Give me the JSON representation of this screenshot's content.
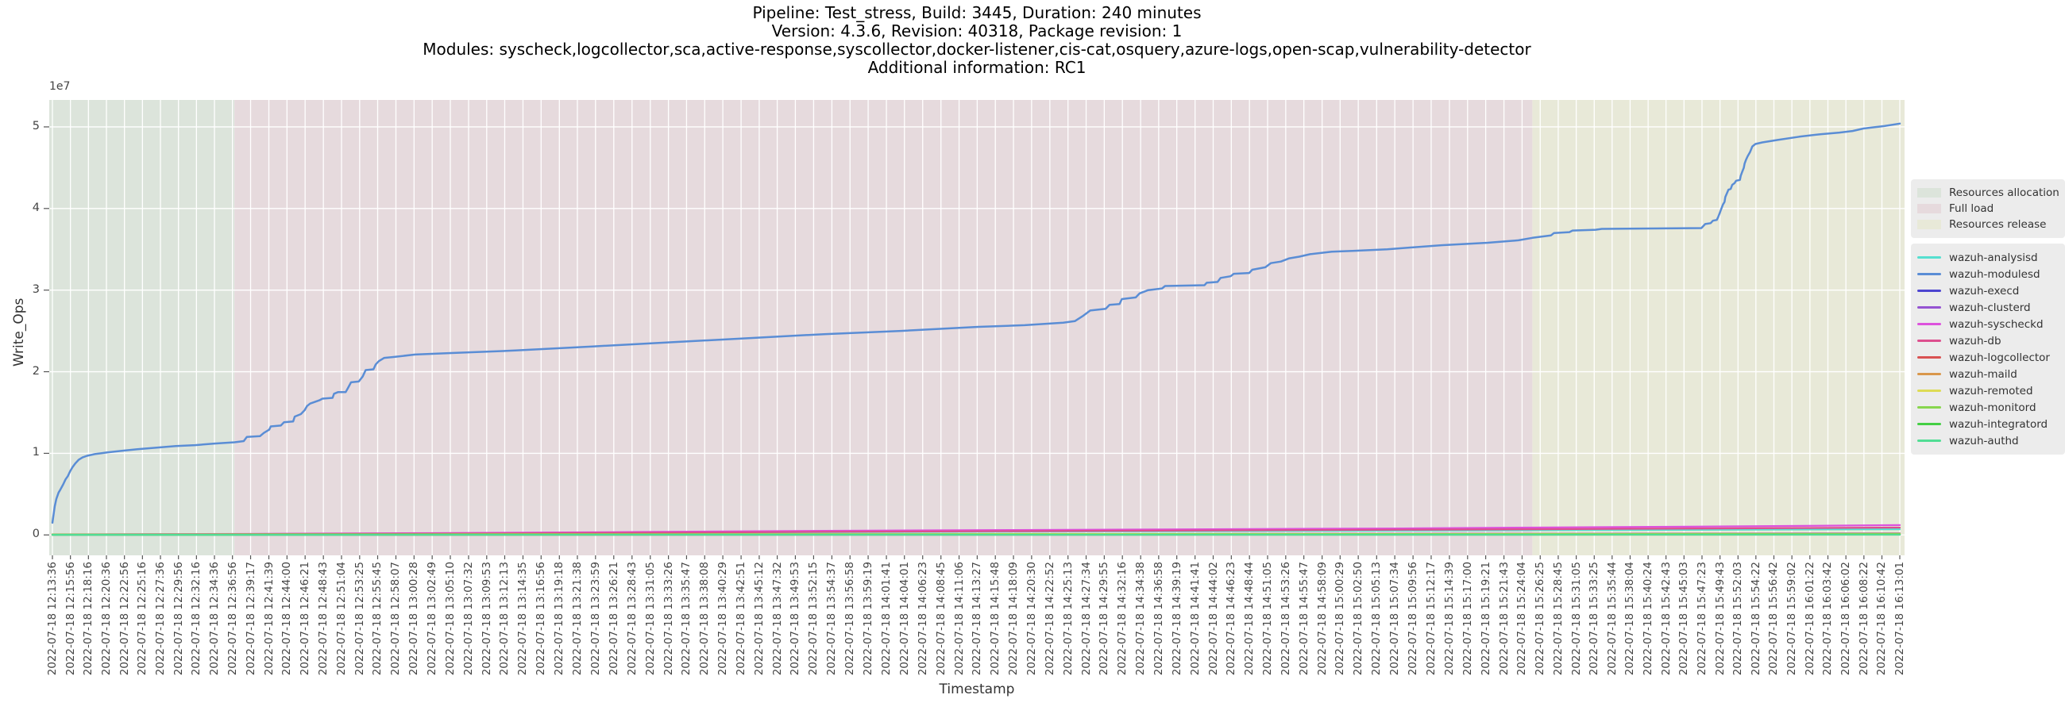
{
  "title": {
    "lines": [
      "Pipeline: Test_stress, Build: 3445, Duration: 240 minutes",
      "Version: 4.3.6, Revision: 40318, Package revision: 1",
      "Modules: syscheck,logcollector,sca,active-response,syscollector,docker-listener,cis-cat,osquery,azure-logs,open-scap,vulnerability-detector",
      "Additional information: RC1"
    ]
  },
  "axes": {
    "ylabel": "Write_Ops",
    "xlabel": "Timestamp",
    "y_offset_label": "1e7"
  },
  "chart_data": {
    "type": "line",
    "title": "Pipeline: Test_stress, Build: 3445, Duration: 240 minutes",
    "xlabel": "Timestamp",
    "ylabel": "Write_Ops",
    "grid": true,
    "legend_position": "right",
    "ylim": [
      -2500000,
      53300000
    ],
    "y_ticks": [
      {
        "label": "0",
        "value": 0
      },
      {
        "label": "1",
        "value": 10000000
      },
      {
        "label": "2",
        "value": 20000000
      },
      {
        "label": "3",
        "value": 30000000
      },
      {
        "label": "4",
        "value": 40000000
      },
      {
        "label": "5",
        "value": 50000000
      }
    ],
    "x_tick_labels": [
      "2022-07-18 12:13:36",
      "2022-07-18 12:15:56",
      "2022-07-18 12:18:16",
      "2022-07-18 12:20:36",
      "2022-07-18 12:22:56",
      "2022-07-18 12:25:16",
      "2022-07-18 12:27:36",
      "2022-07-18 12:29:56",
      "2022-07-18 12:32:16",
      "2022-07-18 12:34:36",
      "2022-07-18 12:36:56",
      "2022-07-18 12:39:17",
      "2022-07-18 12:41:39",
      "2022-07-18 12:44:00",
      "2022-07-18 12:46:21",
      "2022-07-18 12:48:43",
      "2022-07-18 12:51:04",
      "2022-07-18 12:53:25",
      "2022-07-18 12:55:45",
      "2022-07-18 12:58:07",
      "2022-07-18 13:00:28",
      "2022-07-18 13:02:49",
      "2022-07-18 13:05:10",
      "2022-07-18 13:07:32",
      "2022-07-18 13:09:53",
      "2022-07-18 13:12:13",
      "2022-07-18 13:14:35",
      "2022-07-18 13:16:56",
      "2022-07-18 13:19:18",
      "2022-07-18 13:21:38",
      "2022-07-18 13:23:59",
      "2022-07-18 13:26:21",
      "2022-07-18 13:28:43",
      "2022-07-18 13:31:05",
      "2022-07-18 13:33:26",
      "2022-07-18 13:35:47",
      "2022-07-18 13:38:08",
      "2022-07-18 13:40:29",
      "2022-07-18 13:42:51",
      "2022-07-18 13:45:12",
      "2022-07-18 13:47:32",
      "2022-07-18 13:49:53",
      "2022-07-18 13:52:15",
      "2022-07-18 13:54:37",
      "2022-07-18 13:56:58",
      "2022-07-18 13:59:19",
      "2022-07-18 14:01:41",
      "2022-07-18 14:04:01",
      "2022-07-18 14:06:23",
      "2022-07-18 14:08:45",
      "2022-07-18 14:11:06",
      "2022-07-18 14:13:27",
      "2022-07-18 14:15:48",
      "2022-07-18 14:18:09",
      "2022-07-18 14:20:30",
      "2022-07-18 14:22:52",
      "2022-07-18 14:25:13",
      "2022-07-18 14:27:34",
      "2022-07-18 14:29:55",
      "2022-07-18 14:32:16",
      "2022-07-18 14:34:38",
      "2022-07-18 14:36:58",
      "2022-07-18 14:39:19",
      "2022-07-18 14:41:41",
      "2022-07-18 14:44:02",
      "2022-07-18 14:46:23",
      "2022-07-18 14:48:44",
      "2022-07-18 14:51:05",
      "2022-07-18 14:53:26",
      "2022-07-18 14:55:47",
      "2022-07-18 14:58:09",
      "2022-07-18 15:00:29",
      "2022-07-18 15:02:50",
      "2022-07-18 15:05:13",
      "2022-07-18 15:07:34",
      "2022-07-18 15:09:56",
      "2022-07-18 15:12:17",
      "2022-07-18 15:14:39",
      "2022-07-18 15:17:00",
      "2022-07-18 15:19:21",
      "2022-07-18 15:21:43",
      "2022-07-18 15:24:04",
      "2022-07-18 15:26:25",
      "2022-07-18 15:28:45",
      "2022-07-18 15:31:05",
      "2022-07-18 15:33:25",
      "2022-07-18 15:35:44",
      "2022-07-18 15:38:04",
      "2022-07-18 15:40:24",
      "2022-07-18 15:42:43",
      "2022-07-18 15:45:03",
      "2022-07-18 15:47:23",
      "2022-07-18 15:49:43",
      "2022-07-18 15:52:03",
      "2022-07-18 15:54:22",
      "2022-07-18 15:56:42",
      "2022-07-18 15:59:02",
      "2022-07-18 16:01:22",
      "2022-07-18 16:03:42",
      "2022-07-18 16:06:02",
      "2022-07-18 16:08:22",
      "2022-07-18 16:10:42",
      "2022-07-18 16:13:01"
    ],
    "regions": [
      {
        "label": "Resources allocation",
        "color": "#dce4db",
        "t_start_min": -0.45,
        "t_end_min": 23.6
      },
      {
        "label": "Full load",
        "color": "#e6dadd",
        "t_start_min": 23.6,
        "t_end_min": 191.8
      },
      {
        "label": "Resources release",
        "color": "#e8e9d8",
        "t_start_min": 191.8,
        "t_end_min": 240.3
      }
    ],
    "series": [
      {
        "name": "wazuh-analysisd",
        "color": "#55dfd0",
        "points": [
          [
            0,
            50000
          ],
          [
            30,
            120000
          ],
          [
            60,
            220000
          ],
          [
            100,
            350000
          ],
          [
            140,
            450000
          ],
          [
            180,
            550000
          ],
          [
            200,
            600000
          ],
          [
            220,
            650000
          ],
          [
            239.42,
            700000
          ]
        ]
      },
      {
        "name": "wazuh-modulesd",
        "color": "#5a8dd5",
        "points": [
          [
            0,
            1500000
          ],
          [
            0.3,
            3500000
          ],
          [
            0.5,
            4400000
          ],
          [
            0.8,
            5200000
          ],
          [
            1,
            5500000
          ],
          [
            1.4,
            6200000
          ],
          [
            1.7,
            6800000
          ],
          [
            2,
            7200000
          ],
          [
            2.3,
            7800000
          ],
          [
            2.6,
            8300000
          ],
          [
            3,
            8800000
          ],
          [
            3.4,
            9200000
          ],
          [
            3.9,
            9500000
          ],
          [
            4.5,
            9700000
          ],
          [
            5.5,
            9900000
          ],
          [
            7,
            10100000
          ],
          [
            9,
            10300000
          ],
          [
            11,
            10500000
          ],
          [
            13.5,
            10700000
          ],
          [
            16,
            10900000
          ],
          [
            18.5,
            11000000
          ],
          [
            21,
            11200000
          ],
          [
            23.6,
            11350000
          ],
          [
            24.8,
            11500000
          ],
          [
            25.2,
            12000000
          ],
          [
            26.9,
            12100000
          ],
          [
            27.4,
            12500000
          ],
          [
            28.1,
            12900000
          ],
          [
            28.3,
            13300000
          ],
          [
            29.6,
            13400000
          ],
          [
            30,
            13800000
          ],
          [
            31.2,
            13900000
          ],
          [
            31.4,
            14500000
          ],
          [
            32.2,
            14800000
          ],
          [
            32.7,
            15300000
          ],
          [
            33,
            15800000
          ],
          [
            33.4,
            16100000
          ],
          [
            34.6,
            16500000
          ],
          [
            35,
            16700000
          ],
          [
            36.3,
            16800000
          ],
          [
            36.5,
            17300000
          ],
          [
            37,
            17500000
          ],
          [
            38,
            17500000
          ],
          [
            38.3,
            18000000
          ],
          [
            38.7,
            18700000
          ],
          [
            39.7,
            18800000
          ],
          [
            40.2,
            19400000
          ],
          [
            40.6,
            20200000
          ],
          [
            41.6,
            20300000
          ],
          [
            41.9,
            20900000
          ],
          [
            42.3,
            21300000
          ],
          [
            43,
            21700000
          ],
          [
            44.2,
            21800000
          ],
          [
            47,
            22100000
          ],
          [
            52,
            22300000
          ],
          [
            60,
            22600000
          ],
          [
            70,
            23100000
          ],
          [
            80,
            23600000
          ],
          [
            90,
            24100000
          ],
          [
            100,
            24600000
          ],
          [
            110,
            25000000
          ],
          [
            120,
            25500000
          ],
          [
            126,
            25700000
          ],
          [
            131,
            26000000
          ],
          [
            132.5,
            26200000
          ],
          [
            133.5,
            26800000
          ],
          [
            134.5,
            27500000
          ],
          [
            136.5,
            27700000
          ],
          [
            137,
            28200000
          ],
          [
            138.3,
            28300000
          ],
          [
            138.6,
            28900000
          ],
          [
            140.4,
            29100000
          ],
          [
            140.9,
            29600000
          ],
          [
            142,
            30000000
          ],
          [
            143.8,
            30200000
          ],
          [
            144.2,
            30500000
          ],
          [
            149.3,
            30600000
          ],
          [
            149.6,
            30900000
          ],
          [
            151,
            31000000
          ],
          [
            151.4,
            31500000
          ],
          [
            152.7,
            31700000
          ],
          [
            153.1,
            32000000
          ],
          [
            155.1,
            32100000
          ],
          [
            155.5,
            32500000
          ],
          [
            157.2,
            32800000
          ],
          [
            157.9,
            33300000
          ],
          [
            159.2,
            33500000
          ],
          [
            160.3,
            33900000
          ],
          [
            161.6,
            34100000
          ],
          [
            163,
            34400000
          ],
          [
            165.8,
            34700000
          ],
          [
            168.5,
            34800000
          ],
          [
            173,
            35000000
          ],
          [
            180,
            35500000
          ],
          [
            186,
            35800000
          ],
          [
            190,
            36100000
          ],
          [
            191.8,
            36400000
          ],
          [
            194.2,
            36700000
          ],
          [
            194.6,
            37000000
          ],
          [
            196.6,
            37100000
          ],
          [
            197,
            37300000
          ],
          [
            200,
            37400000
          ],
          [
            200.8,
            37500000
          ],
          [
            213.7,
            37600000
          ],
          [
            214.2,
            38100000
          ],
          [
            214.9,
            38200000
          ],
          [
            215.2,
            38500000
          ],
          [
            215.7,
            38600000
          ],
          [
            215.9,
            39000000
          ],
          [
            216.1,
            39500000
          ],
          [
            216.3,
            40000000
          ],
          [
            216.5,
            40500000
          ],
          [
            216.7,
            40800000
          ],
          [
            216.8,
            41400000
          ],
          [
            217.2,
            42300000
          ],
          [
            217.5,
            42400000
          ],
          [
            217.7,
            42900000
          ],
          [
            218,
            43100000
          ],
          [
            218.2,
            43400000
          ],
          [
            218.7,
            43500000
          ],
          [
            218.8,
            44000000
          ],
          [
            219,
            44500000
          ],
          [
            219.2,
            45000000
          ],
          [
            219.3,
            45500000
          ],
          [
            219.5,
            46000000
          ],
          [
            219.7,
            46400000
          ],
          [
            220,
            46900000
          ],
          [
            220.3,
            47600000
          ],
          [
            220.7,
            47900000
          ],
          [
            221.6,
            48100000
          ],
          [
            223.6,
            48400000
          ],
          [
            226.4,
            48800000
          ],
          [
            229.1,
            49100000
          ],
          [
            231.6,
            49300000
          ],
          [
            233.3,
            49500000
          ],
          [
            234.7,
            49800000
          ],
          [
            237.4,
            50100000
          ],
          [
            239.42,
            50400000
          ]
        ]
      },
      {
        "name": "wazuh-execd",
        "color": "#4d45d0",
        "points": [
          [
            0,
            20000
          ],
          [
            239.42,
            50000
          ]
        ]
      },
      {
        "name": "wazuh-clusterd",
        "color": "#9553d2",
        "points": [
          [
            0,
            30000
          ],
          [
            120,
            100000
          ],
          [
            239.42,
            200000
          ]
        ]
      },
      {
        "name": "wazuh-syscheckd",
        "color": "#dd52dd",
        "points": [
          [
            0,
            80000
          ],
          [
            25,
            120000
          ],
          [
            50,
            220000
          ],
          [
            75,
            350000
          ],
          [
            100,
            500000
          ],
          [
            125,
            600000
          ],
          [
            150,
            700000
          ],
          [
            175,
            800000
          ],
          [
            192,
            900000
          ],
          [
            210,
            1000000
          ],
          [
            225,
            1100000
          ],
          [
            239.42,
            1200000
          ]
        ]
      },
      {
        "name": "wazuh-db",
        "color": "#dd4f8e",
        "points": [
          [
            0,
            50000
          ],
          [
            50,
            150000
          ],
          [
            100,
            380000
          ],
          [
            150,
            550000
          ],
          [
            192,
            700000
          ],
          [
            239.42,
            900000
          ]
        ]
      },
      {
        "name": "wazuh-logcollector",
        "color": "#d95252",
        "points": [
          [
            0,
            40000
          ],
          [
            239.42,
            80000
          ]
        ]
      },
      {
        "name": "wazuh-maild",
        "color": "#d9974b",
        "points": [
          [
            0,
            20000
          ],
          [
            239.42,
            40000
          ]
        ]
      },
      {
        "name": "wazuh-remoted",
        "color": "#dedb55",
        "points": [
          [
            0,
            60000
          ],
          [
            239.42,
            150000
          ]
        ]
      },
      {
        "name": "wazuh-monitord",
        "color": "#88d64e",
        "points": [
          [
            0,
            40000
          ],
          [
            239.42,
            90000
          ]
        ]
      },
      {
        "name": "wazuh-integratord",
        "color": "#44cf44",
        "points": [
          [
            0,
            30000
          ],
          [
            239.42,
            60000
          ]
        ]
      },
      {
        "name": "wazuh-authd",
        "color": "#51dd94",
        "points": [
          [
            0,
            10000
          ],
          [
            239.42,
            30000
          ]
        ]
      }
    ]
  }
}
